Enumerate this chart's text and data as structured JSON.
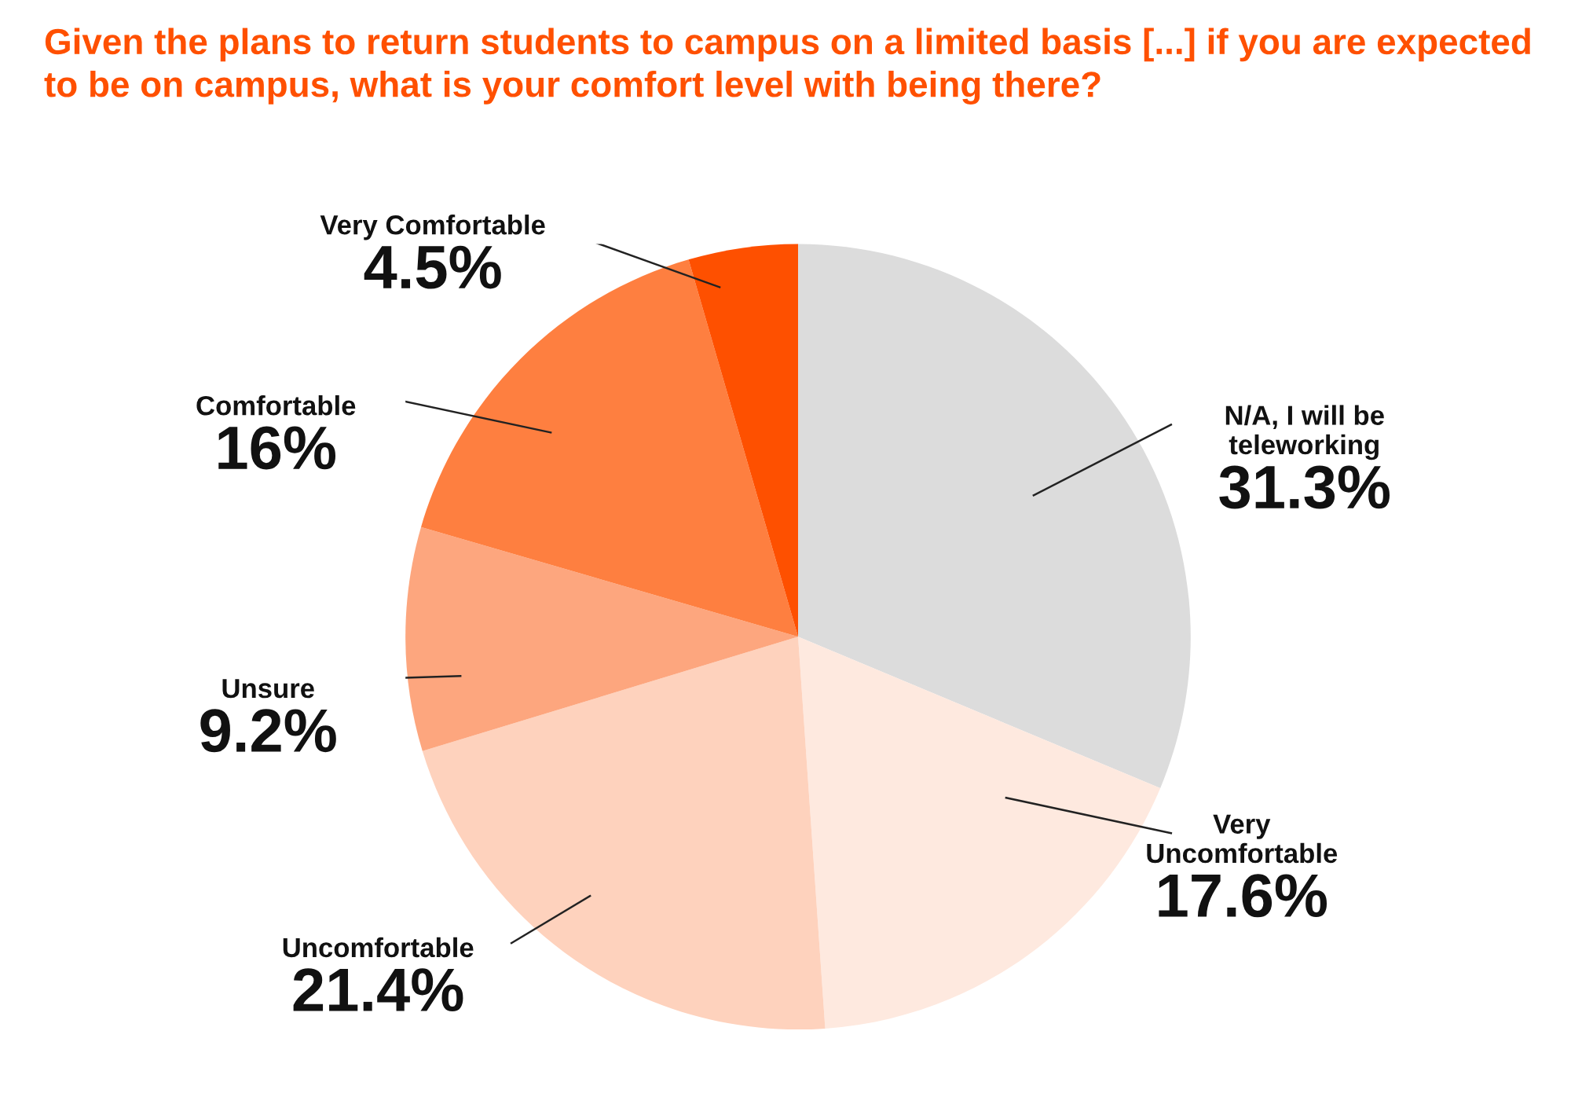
{
  "chart_data": {
    "type": "pie",
    "title": "Given the plans to return students to campus on a limited basis [...] if you are expected to be on campus, what is your comfort level with being there?",
    "categories": [
      "N/A, I will be\nteleworking",
      "Very\nUncomfortable",
      "Uncomfortable",
      "Unsure",
      "Comfortable",
      "Very Comfortable"
    ],
    "values": [
      31.3,
      17.6,
      21.4,
      9.2,
      16,
      4.5
    ],
    "value_labels": [
      "31.3%",
      "17.6%",
      "21.4%",
      "9.2%",
      "16%",
      "4.5%"
    ],
    "colors": [
      "#dcdcdc",
      "#fee9df",
      "#fed2bd",
      "#fda67e",
      "#fe7f40",
      "#fe5000"
    ],
    "legend": false
  }
}
